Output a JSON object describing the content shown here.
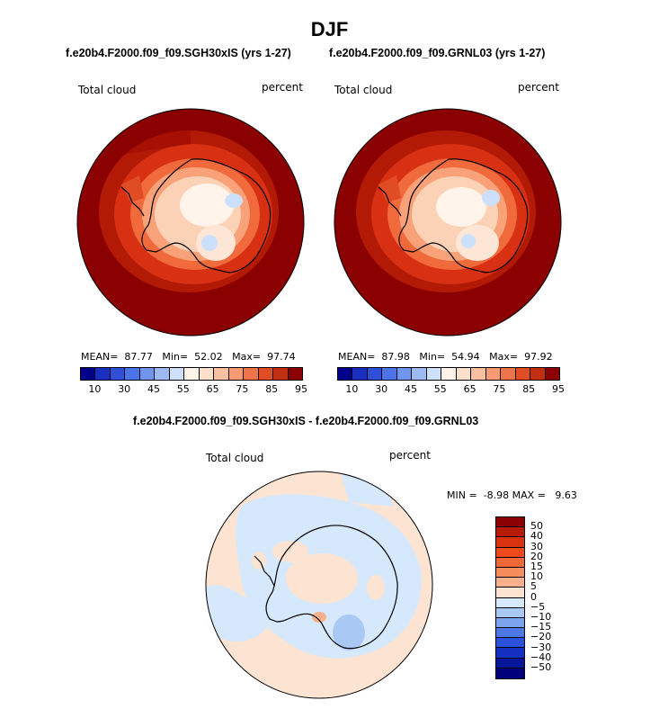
{
  "season": "DJF",
  "panels": [
    {
      "case": "f.e20b4.F2000.f09_f09.SGH30xIS (yrs 1-27)",
      "variable": "Total cloud",
      "units": "percent",
      "mean_label": "MEAN=",
      "mean": "87.77",
      "min_label": "Min=",
      "min": "52.02",
      "max_label": "Max=",
      "max": "97.74"
    },
    {
      "case": "f.e20b4.F2000.f09_f09.GRNL03 (yrs 1-27)",
      "variable": "Total cloud",
      "units": "percent",
      "mean_label": "MEAN=",
      "mean": "87.98",
      "min_label": "Min=",
      "min": "54.94",
      "max_label": "Max=",
      "max": "97.92"
    }
  ],
  "colorbar_ticks": [
    "10",
    "30",
    "45",
    "55",
    "65",
    "75",
    "85",
    "95"
  ],
  "colorbar_colors": [
    "#00008b",
    "#1a2ebf",
    "#2f4fd6",
    "#4a74e8",
    "#6f95ee",
    "#9cb9f2",
    "#cde0fb",
    "#fff3ea",
    "#fde0cc",
    "#fbc0a0",
    "#f89b74",
    "#f0744a",
    "#e04c24",
    "#c03010",
    "#8b0000"
  ],
  "difference": {
    "title": "f.e20b4.F2000.f09_f09.SGH30xIS - f.e20b4.F2000.f09_f09.GRNL03",
    "variable": "Total cloud",
    "units": "percent",
    "min_label": "MIN =",
    "min": "-8.98",
    "max_label": "MAX =",
    "max": "9.63",
    "levels": [
      "50",
      "40",
      "30",
      "20",
      "15",
      "10",
      "5",
      "0",
      "−5",
      "−10",
      "−15",
      "−20",
      "−30",
      "−40",
      "−50"
    ],
    "colors": [
      "#8b0000",
      "#b81c08",
      "#d83210",
      "#f04a1c",
      "#f06838",
      "#f58c5c",
      "#fab08c",
      "#fde4d2",
      "#d6e8fb",
      "#aac8f4",
      "#7ba3ee",
      "#4d78e6",
      "#2a52dc",
      "#1430c0",
      "#08169a",
      "#00007a"
    ]
  }
}
